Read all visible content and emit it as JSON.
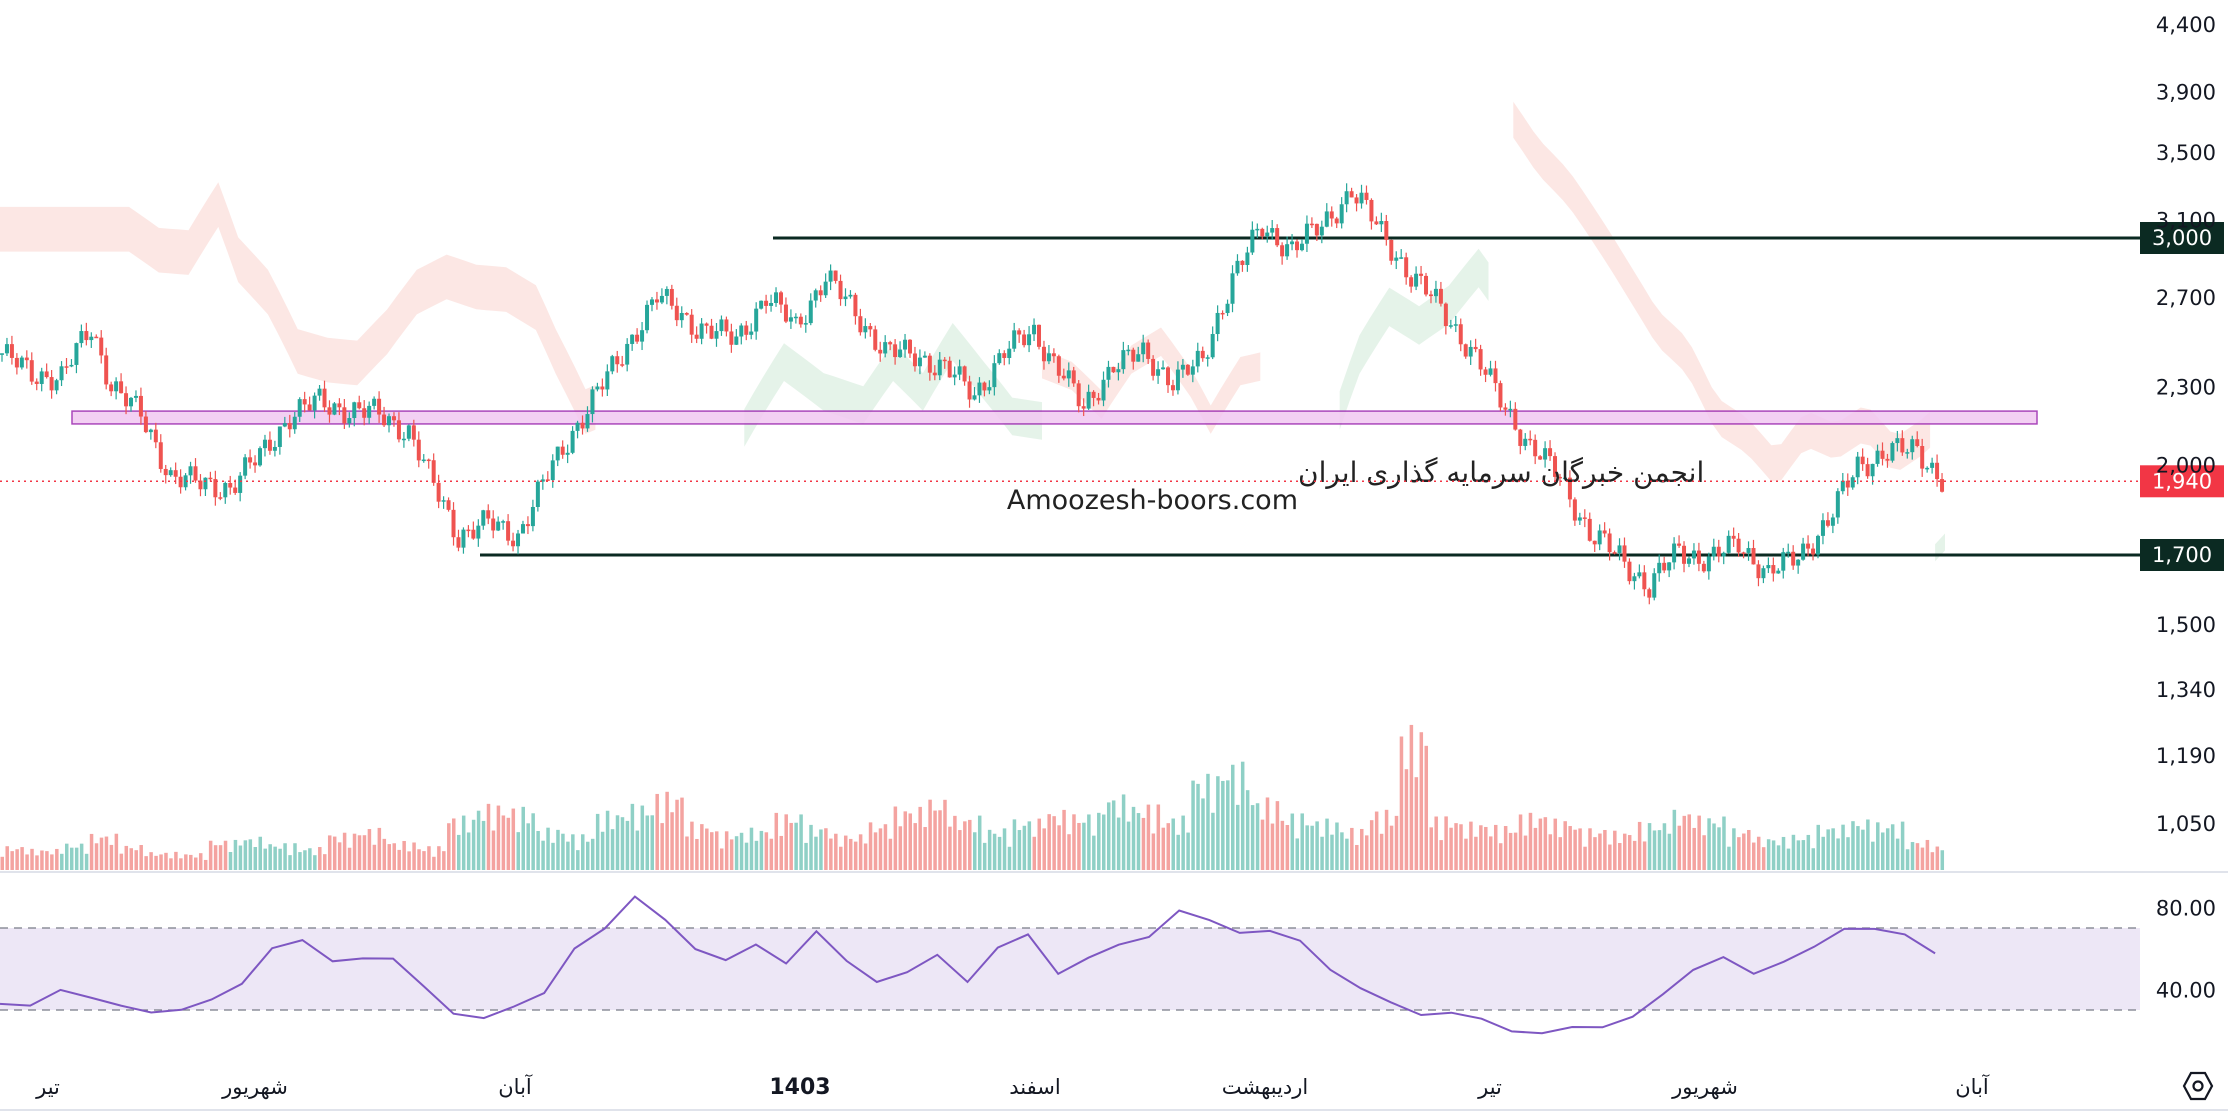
{
  "colors": {
    "up": "#26a69a",
    "down": "#ef5350",
    "volume_up": "#8fd0c6",
    "volume_down": "#f4a3a0",
    "cloud_bear": "#fce4e1",
    "cloud_bull": "#e2f2e7",
    "level_line": "#0b2a22",
    "zone_fill": "#f2c8f2",
    "zone_stroke": "#9c27b0",
    "rsi_line": "#7e57c2",
    "rsi_band": "#ede7f6",
    "last_price": "#f23645"
  },
  "chart_data": {
    "type": "candlestick",
    "price_axis": {
      "ticks": [
        "4,400",
        "3,900",
        "3,500",
        "3,100",
        "2,700",
        "2,300",
        "2,000",
        "1,500",
        "1,340",
        "1,190",
        "1,050"
      ],
      "tick_values": [
        4400,
        3900,
        3500,
        3100,
        2700,
        2300,
        2000,
        1500,
        1340,
        1190,
        1050
      ],
      "scale": "log"
    },
    "time_axis": {
      "labels": [
        "تیر",
        "شهریور",
        "آبان",
        "1403",
        "اسفند",
        "اردیبهشت",
        "تیر",
        "شهریور",
        "آبان"
      ],
      "bold_label": "1403"
    },
    "levels": [
      {
        "label": "3,000",
        "value": 3000
      },
      {
        "label": "1,700",
        "value": 1700
      }
    ],
    "zone": {
      "from": 2150,
      "to": 2200
    },
    "last_price": {
      "label": "1,940",
      "value": 1940
    },
    "watermark": {
      "line1": "انجمن خبرگان سرمایه گذاری ایران",
      "line2": "Amoozesh-boors.com"
    },
    "price_series": [
      {
        "x": 0,
        "close": 2440
      },
      {
        "x": 6,
        "close": 2350
      },
      {
        "x": 12,
        "close": 2340
      },
      {
        "x": 18,
        "close": 2550
      },
      {
        "x": 22,
        "close": 2310
      },
      {
        "x": 28,
        "close": 2180
      },
      {
        "x": 34,
        "close": 1960
      },
      {
        "x": 40,
        "close": 1930
      },
      {
        "x": 46,
        "close": 1920
      },
      {
        "x": 52,
        "close": 2030
      },
      {
        "x": 58,
        "close": 2180
      },
      {
        "x": 64,
        "close": 2240
      },
      {
        "x": 70,
        "close": 2200
      },
      {
        "x": 76,
        "close": 2190
      },
      {
        "x": 82,
        "close": 2120
      },
      {
        "x": 86,
        "close": 1960
      },
      {
        "x": 92,
        "close": 1760
      },
      {
        "x": 98,
        "close": 1800
      },
      {
        "x": 104,
        "close": 1760
      },
      {
        "x": 110,
        "close": 1960
      },
      {
        "x": 116,
        "close": 2150
      },
      {
        "x": 124,
        "close": 2400
      },
      {
        "x": 132,
        "close": 2700
      },
      {
        "x": 140,
        "close": 2560
      },
      {
        "x": 148,
        "close": 2500
      },
      {
        "x": 154,
        "close": 2700
      },
      {
        "x": 160,
        "close": 2560
      },
      {
        "x": 166,
        "close": 2800
      },
      {
        "x": 172,
        "close": 2620
      },
      {
        "x": 178,
        "close": 2450
      },
      {
        "x": 184,
        "close": 2430
      },
      {
        "x": 190,
        "close": 2380
      },
      {
        "x": 196,
        "close": 2260
      },
      {
        "x": 202,
        "close": 2450
      },
      {
        "x": 208,
        "close": 2530
      },
      {
        "x": 214,
        "close": 2350
      },
      {
        "x": 218,
        "close": 2200
      },
      {
        "x": 224,
        "close": 2400
      },
      {
        "x": 230,
        "close": 2430
      },
      {
        "x": 236,
        "close": 2330
      },
      {
        "x": 242,
        "close": 2400
      },
      {
        "x": 248,
        "close": 2800
      },
      {
        "x": 254,
        "close": 3050
      },
      {
        "x": 260,
        "close": 2950
      },
      {
        "x": 266,
        "close": 3060
      },
      {
        "x": 272,
        "close": 3270
      },
      {
        "x": 278,
        "close": 3030
      },
      {
        "x": 284,
        "close": 2800
      },
      {
        "x": 290,
        "close": 2650
      },
      {
        "x": 296,
        "close": 2450
      },
      {
        "x": 302,
        "close": 2250
      },
      {
        "x": 308,
        "close": 2060
      },
      {
        "x": 314,
        "close": 1960
      },
      {
        "x": 320,
        "close": 1760
      },
      {
        "x": 326,
        "close": 1700
      },
      {
        "x": 332,
        "close": 1600
      },
      {
        "x": 338,
        "close": 1720
      },
      {
        "x": 344,
        "close": 1680
      },
      {
        "x": 350,
        "close": 1740
      },
      {
        "x": 356,
        "close": 1640
      },
      {
        "x": 362,
        "close": 1700
      },
      {
        "x": 368,
        "close": 1800
      },
      {
        "x": 374,
        "close": 2000
      },
      {
        "x": 380,
        "close": 2040
      },
      {
        "x": 386,
        "close": 2060
      },
      {
        "x": 391,
        "close": 1940
      }
    ],
    "rsi": {
      "ticks": [
        "80.00",
        "40.00"
      ],
      "tick_values": [
        80,
        40
      ],
      "band": [
        70,
        30
      ],
      "values": [
        33,
        30,
        42,
        36,
        30,
        31,
        30,
        33,
        45,
        60,
        62,
        56,
        55,
        53,
        44,
        28,
        24,
        34,
        38,
        58,
        72,
        85,
        72,
        62,
        54,
        60,
        55,
        68,
        52,
        46,
        48,
        55,
        46,
        60,
        65,
        50,
        55,
        60,
        68,
        78,
        72,
        70,
        68,
        62,
        52,
        40,
        32,
        30,
        28,
        24,
        22,
        18,
        20,
        24,
        26,
        36,
        52,
        55,
        46,
        56,
        60,
        68,
        72,
        66,
        56
      ]
    },
    "volume": {
      "values": [
        40,
        35,
        45,
        60,
        42,
        30,
        28,
        50,
        55,
        45,
        38,
        62,
        70,
        48,
        40,
        90,
        110,
        105,
        70,
        60,
        98,
        110,
        130,
        80,
        65,
        70,
        95,
        75,
        60,
        80,
        105,
        120,
        90,
        70,
        85,
        100,
        95,
        125,
        110,
        90,
        160,
        180,
        120,
        95,
        85,
        70,
        100,
        240,
        90,
        80,
        75,
        95,
        85,
        70,
        65,
        80,
        100,
        90,
        70,
        55,
        60,
        75,
        85,
        80,
        50
      ]
    }
  }
}
